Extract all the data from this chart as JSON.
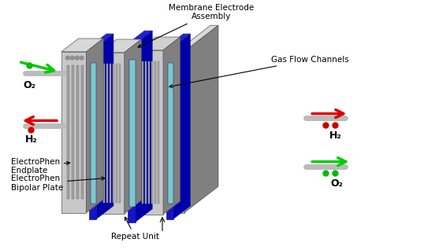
{
  "bg_color": "#ffffff",
  "labels": {
    "membrane_electrode": "Membrane Electrode\nAssembly",
    "gas_flow": "Gas Flow Channels",
    "endplate": "ElectroPhen\nEndplate",
    "bipolar": "ElectroPhen\nBipolar Plate",
    "repeat": "Repeat Unit",
    "o2_left": "O₂",
    "h2_left": "H₂",
    "h2_right": "H₂",
    "o2_right": "O₂"
  },
  "colors": {
    "gray_plate": "#a0a0a0",
    "gray_plate_dark": "#808080",
    "gray_plate_light": "#c8c8c8",
    "blue_frame": "#1414cc",
    "blue_frame_dark": "#0000aa",
    "teal_center": "#7ec8c8",
    "arrow_green": "#00cc00",
    "arrow_red": "#dd0000",
    "dot_green": "#00bb00",
    "dot_red": "#cc0000",
    "tube_color": "#bbbbbb"
  }
}
